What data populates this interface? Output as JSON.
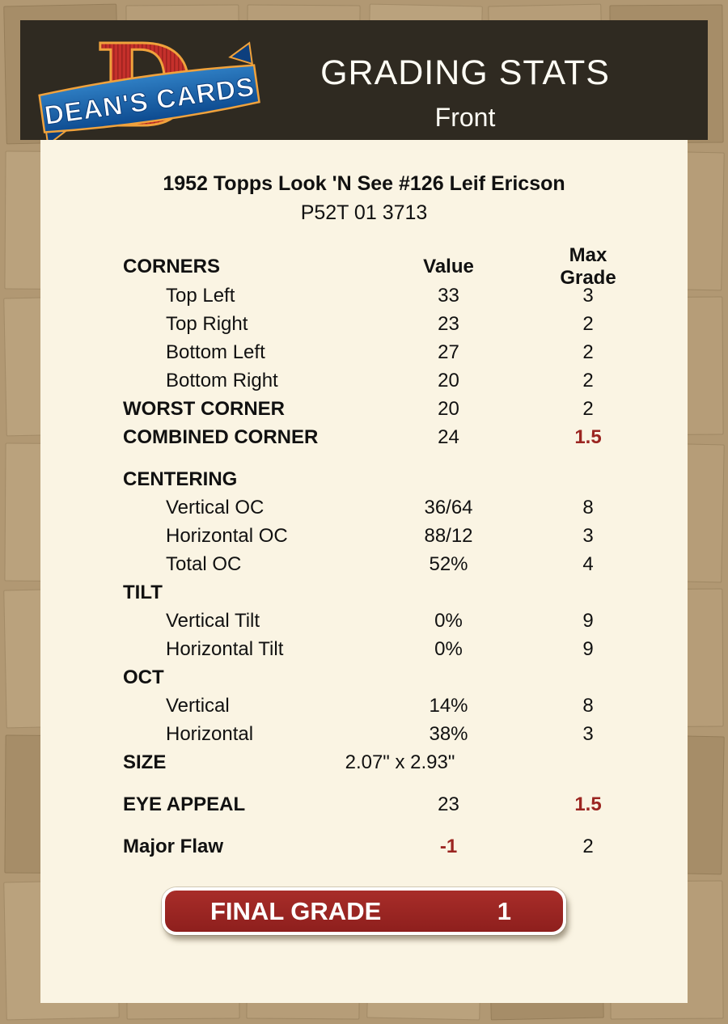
{
  "header": {
    "title": "GRADING STATS",
    "subtitle": "Front",
    "logo": {
      "letter": "D",
      "banner": "DEAN'S CARDS"
    }
  },
  "card": {
    "title": "1952 Topps Look 'N See #126 Leif Ericson",
    "serial": "P52T 01 3713"
  },
  "table": {
    "header": {
      "label": "CORNERS",
      "value": "Value",
      "max": "Max Grade"
    },
    "rows": [
      {
        "label": "Top Left",
        "value": "33",
        "max": "3",
        "indent": true
      },
      {
        "label": "Top Right",
        "value": "23",
        "max": "2",
        "indent": true
      },
      {
        "label": "Bottom Left",
        "value": "27",
        "max": "2",
        "indent": true
      },
      {
        "label": "Bottom Right",
        "value": "20",
        "max": "2",
        "indent": true
      },
      {
        "label": "WORST CORNER",
        "value": "20",
        "max": "2",
        "bold": true
      },
      {
        "label": "COMBINED CORNER",
        "value": "24",
        "max": "1.5",
        "bold": true,
        "max_red": true
      },
      {
        "spacer": true
      },
      {
        "label": "CENTERING",
        "value": "",
        "max": "",
        "bold": true
      },
      {
        "label": "Vertical OC",
        "value": "36/64",
        "max": "8",
        "indent": true
      },
      {
        "label": "Horizontal OC",
        "value": "88/12",
        "max": "3",
        "indent": true
      },
      {
        "label": "Total OC",
        "value": "52%",
        "max": "4",
        "indent": true
      },
      {
        "label": "TILT",
        "value": "",
        "max": "",
        "bold": true
      },
      {
        "label": "Vertical Tilt",
        "value": "0%",
        "max": "9",
        "indent": true
      },
      {
        "label": "Horizontal Tilt",
        "value": "0%",
        "max": "9",
        "indent": true
      },
      {
        "label": "OCT",
        "value": "",
        "max": "",
        "bold": true
      },
      {
        "label": "Vertical",
        "value": "14%",
        "max": "8",
        "indent": true
      },
      {
        "label": "Horizontal",
        "value": "38%",
        "max": "3",
        "indent": true
      },
      {
        "label": "SIZE",
        "value": "2.07\" x 2.93\"",
        "max": "",
        "bold": true,
        "value_wide": true
      },
      {
        "spacer": true
      },
      {
        "label": "EYE APPEAL",
        "value": "23",
        "max": "1.5",
        "bold": true,
        "max_red": true
      },
      {
        "spacer": true
      },
      {
        "label": "Major Flaw",
        "value": "-1",
        "max": "2",
        "bold": true,
        "value_red": true
      }
    ]
  },
  "final_grade": {
    "label": "FINAL GRADE",
    "value": "1"
  },
  "colors": {
    "page_bg": "#b19873",
    "content_bg": "#faf4e3",
    "header_bg": "#2f2a21",
    "accent_maroon": "#9b2521",
    "button_red": "#9b2422",
    "logo_red": "#c5302b",
    "logo_orange": "#f0a23c",
    "logo_blue": "#1d65ad"
  }
}
